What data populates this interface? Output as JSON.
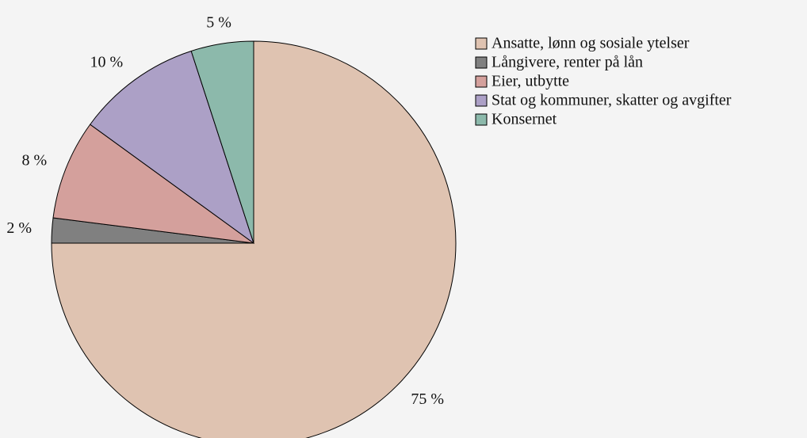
{
  "chart_data": {
    "type": "pie",
    "categories": [
      "Ansatte, lønn og sosiale ytelser",
      "Långivere, renter på lån",
      "Eier, utbytte",
      "Stat og kommuner, skatter og avgifter",
      "Konsernet"
    ],
    "values": [
      75,
      2,
      8,
      10,
      5
    ],
    "value_labels": [
      "75 %",
      "2 %",
      "8 %",
      "10 %",
      "5 %"
    ],
    "colors": [
      "#dfc3b1",
      "#808080",
      "#d4a09c",
      "#aca0c6",
      "#8cb9ab"
    ]
  }
}
